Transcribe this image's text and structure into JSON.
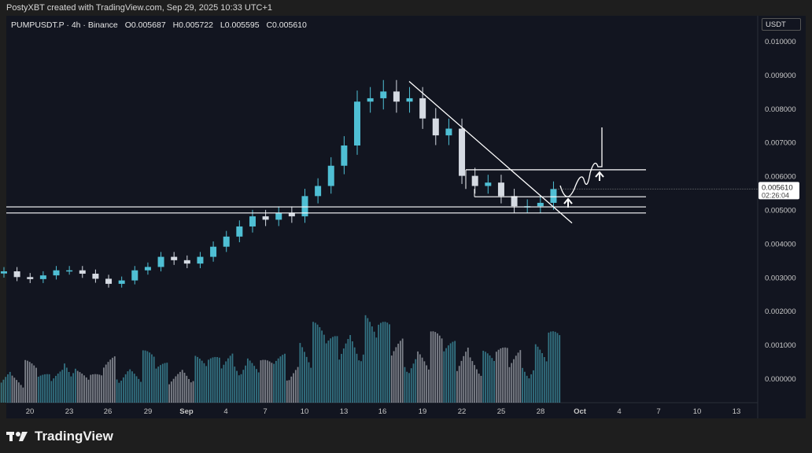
{
  "credit": "PostyXBT created with TradingView.com, Sep 29, 2025 10:33 UTC+1",
  "legend": {
    "symbol": "PUMPUSDT.P · 4h · Binance",
    "open": "O0.005687",
    "high": "H0.005722",
    "low": "L0.005595",
    "close": "C0.005610"
  },
  "price_axis": {
    "unit": "USDT",
    "ticks": [
      "0.010000",
      "0.009000",
      "0.008000",
      "0.007000",
      "0.006000",
      "0.005000",
      "0.004000",
      "0.003000",
      "0.002000",
      "0.001000",
      "0.000000"
    ],
    "last_price": "0.005610",
    "countdown": "02:26:04"
  },
  "brand": "TradingView",
  "colors": {
    "up": "#4fbfd4",
    "down": "#d5dae2",
    "background": "#121520",
    "drawing": "#ffffff"
  },
  "chart_data": {
    "type": "candlestick",
    "symbol": "PUMPUSDT.P",
    "interval": "4h",
    "ylim": [
      0,
      0.0105
    ],
    "x_tick_labels": [
      "20",
      "23",
      "26",
      "29",
      "Sep",
      "4",
      "7",
      "10",
      "13",
      "16",
      "19",
      "22",
      "25",
      "28",
      "Oct",
      "4",
      "7",
      "10",
      "13"
    ],
    "dates": [
      "Aug 18",
      "Aug 19",
      "Aug 20",
      "Aug 21",
      "Aug 22",
      "Aug 23",
      "Aug 24",
      "Aug 25",
      "Aug 26",
      "Aug 27",
      "Aug 28",
      "Aug 29",
      "Aug 30",
      "Aug 31",
      "Sep 1",
      "Sep 2",
      "Sep 3",
      "Sep 4",
      "Sep 5",
      "Sep 6",
      "Sep 7",
      "Sep 8",
      "Sep 9",
      "Sep 10",
      "Sep 11",
      "Sep 12",
      "Sep 13",
      "Sep 14",
      "Sep 15",
      "Sep 16",
      "Sep 17",
      "Sep 18",
      "Sep 19",
      "Sep 20",
      "Sep 21",
      "Sep 22",
      "Sep 23",
      "Sep 24",
      "Sep 25",
      "Sep 26",
      "Sep 27",
      "Sep 28",
      "Sep 29"
    ],
    "close": [
      0.00317,
      0.003,
      0.00294,
      0.00305,
      0.0032,
      0.0032,
      0.0031,
      0.00295,
      0.0028,
      0.0029,
      0.0032,
      0.0033,
      0.0036,
      0.0035,
      0.0034,
      0.0036,
      0.0039,
      0.0042,
      0.0045,
      0.0048,
      0.0047,
      0.0049,
      0.0048,
      0.0054,
      0.0057,
      0.0063,
      0.0069,
      0.0082,
      0.0083,
      0.0085,
      0.0082,
      0.0083,
      0.0077,
      0.0072,
      0.0074,
      0.006,
      0.0057,
      0.0058,
      0.0054,
      0.0051,
      0.0051,
      0.0052,
      0.00561
    ],
    "volume": [
      40,
      35,
      45,
      30,
      38,
      60,
      35,
      30,
      50,
      45,
      40,
      55,
      42,
      38,
      45,
      50,
      48,
      55,
      60,
      50,
      45,
      52,
      48,
      75,
      85,
      70,
      80,
      90,
      95,
      85,
      70,
      65,
      60,
      75,
      65,
      70,
      60,
      55,
      58,
      60,
      55,
      65,
      75
    ],
    "drawings": {
      "trendline": [
        [
          "Sep 17",
          "0.00880"
        ],
        [
          "Sep 29",
          "0.00460"
        ]
      ],
      "horizontal_levels": [
        0.00618,
        0.00538,
        0.00508,
        0.0049
      ]
    }
  }
}
